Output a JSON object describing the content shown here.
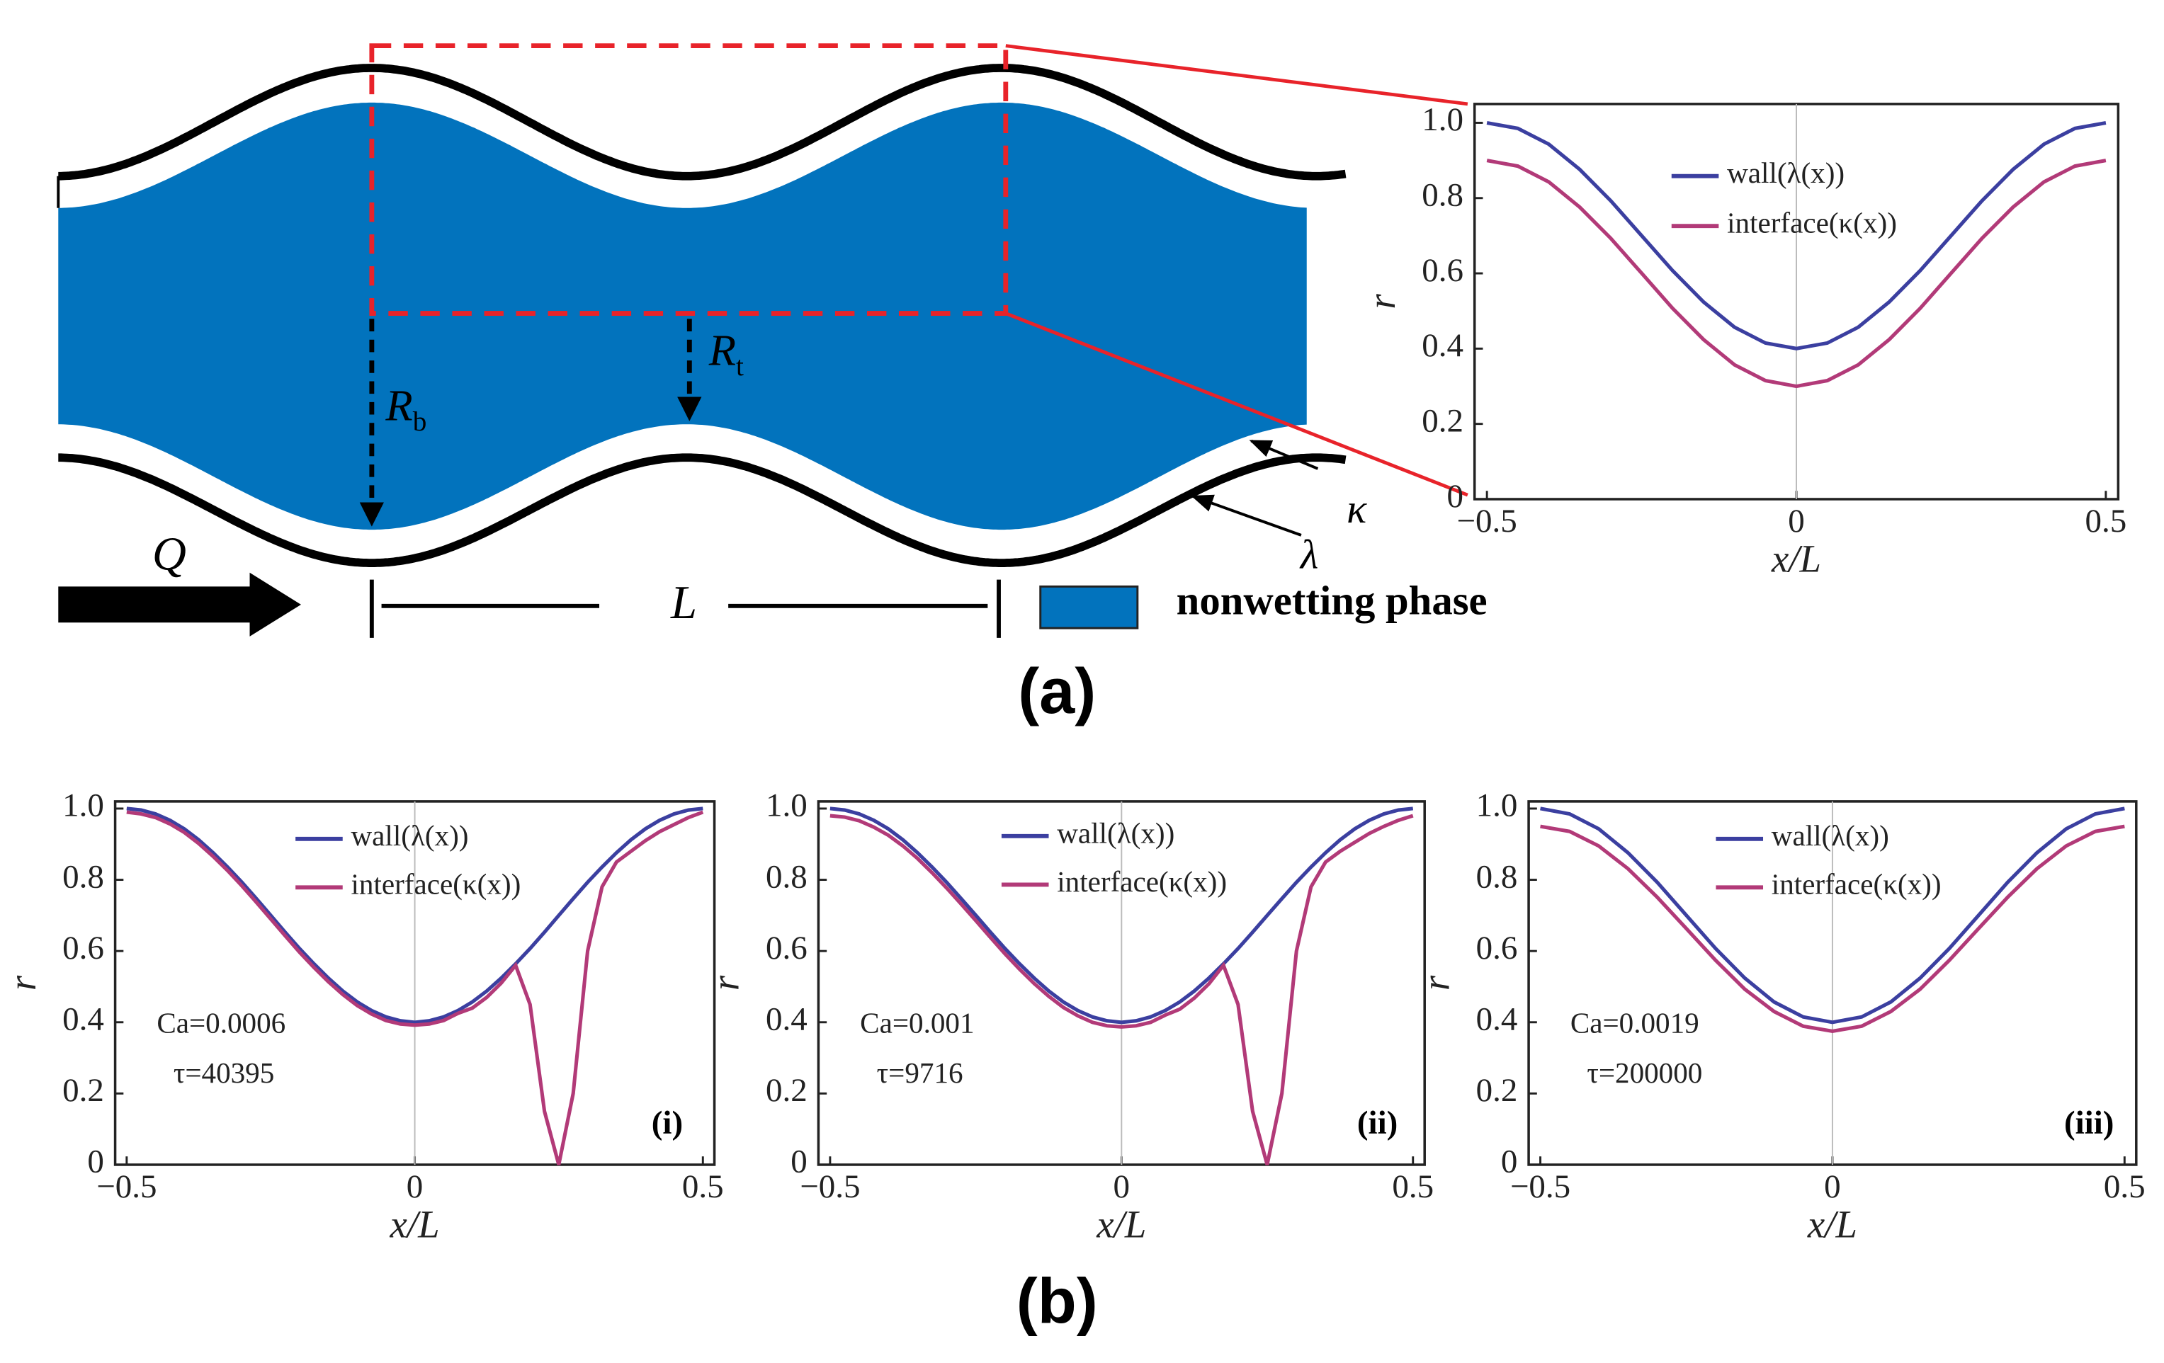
{
  "diagram": {
    "flow_label": "Q",
    "period_label": "L",
    "Rb": {
      "main": "R",
      "sub": "b"
    },
    "Rt": {
      "main": "R",
      "sub": "t"
    },
    "kappa_label": "κ",
    "lambda_label": "λ",
    "legend": "nonwetting phase",
    "panel_label": "(a)"
  },
  "panel_b_label": "(b)",
  "chart_data": [
    {
      "type": "line",
      "xlabel": "x/L",
      "ylabel": "r",
      "x": [
        -0.5,
        -0.45,
        -0.4,
        -0.35,
        -0.3,
        -0.25,
        -0.2,
        -0.15,
        -0.1,
        -0.05,
        0,
        0.05,
        0.1,
        0.15,
        0.2,
        0.25,
        0.3,
        0.35,
        0.4,
        0.45,
        0.5
      ],
      "series": [
        {
          "name": "wall(λ(x))",
          "color": "#3b3fa0",
          "values": [
            1.0,
            0.985,
            0.943,
            0.876,
            0.793,
            0.7,
            0.607,
            0.524,
            0.457,
            0.415,
            0.4,
            0.415,
            0.457,
            0.524,
            0.607,
            0.7,
            0.793,
            0.876,
            0.943,
            0.985,
            1.0
          ]
        },
        {
          "name": "interface(κ(x))",
          "color": "#b23a78",
          "values": [
            0.9,
            0.885,
            0.843,
            0.776,
            0.693,
            0.6,
            0.507,
            0.424,
            0.357,
            0.315,
            0.3,
            0.315,
            0.357,
            0.424,
            0.507,
            0.6,
            0.693,
            0.776,
            0.843,
            0.885,
            0.9
          ]
        }
      ],
      "xlim": [
        -0.52,
        0.52
      ],
      "ylim": [
        0,
        1.05
      ],
      "xticks": [
        {
          "value": -0.5,
          "label": "−0.5"
        },
        0,
        0.5
      ],
      "yticks": [
        0,
        0.2,
        0.4,
        0.6,
        0.8,
        {
          "value": 1.0,
          "label": "1.0"
        }
      ]
    },
    {
      "type": "line",
      "xlabel": "x/L",
      "ylabel": "r",
      "annotations": [
        "Ca=0.0006",
        "τ=40395"
      ],
      "panel_label": "(i)",
      "x": [
        -0.5,
        -0.475,
        -0.45,
        -0.425,
        -0.4,
        -0.375,
        -0.35,
        -0.325,
        -0.3,
        -0.275,
        -0.25,
        -0.225,
        -0.2,
        -0.175,
        -0.15,
        -0.125,
        -0.1,
        -0.075,
        -0.05,
        -0.025,
        0,
        0.025,
        0.05,
        0.075,
        0.1,
        0.125,
        0.15,
        0.175,
        0.2,
        0.225,
        0.25,
        0.275,
        0.3,
        0.325,
        0.35,
        0.375,
        0.4,
        0.425,
        0.45,
        0.475,
        0.5
      ],
      "series": [
        {
          "name": "wall(λ(x))",
          "color": "#3b3fa0",
          "values": [
            1.0,
            0.996,
            0.985,
            0.967,
            0.943,
            0.912,
            0.876,
            0.836,
            0.793,
            0.747,
            0.7,
            0.653,
            0.607,
            0.564,
            0.524,
            0.488,
            0.457,
            0.433,
            0.415,
            0.404,
            0.4,
            0.404,
            0.415,
            0.433,
            0.457,
            0.488,
            0.524,
            0.564,
            0.607,
            0.653,
            0.7,
            0.747,
            0.793,
            0.836,
            0.876,
            0.912,
            0.943,
            0.967,
            0.985,
            0.996,
            1.0
          ]
        },
        {
          "name": "interface(κ(x))",
          "color": "#b23a78",
          "values": [
            0.99,
            0.985,
            0.975,
            0.957,
            0.933,
            0.902,
            0.866,
            0.826,
            0.783,
            0.737,
            0.69,
            0.643,
            0.597,
            0.554,
            0.514,
            0.478,
            0.447,
            0.423,
            0.405,
            0.395,
            0.392,
            0.395,
            0.405,
            0.425,
            0.44,
            0.47,
            0.51,
            0.56,
            0.45,
            0.15,
            0.0,
            0.2,
            0.6,
            0.78,
            0.85,
            0.88,
            0.91,
            0.935,
            0.955,
            0.975,
            0.99
          ]
        }
      ],
      "xlim": [
        -0.52,
        0.52
      ],
      "ylim": [
        0,
        1.02
      ],
      "xticks": [
        {
          "value": -0.5,
          "label": "−0.5"
        },
        0,
        0.5
      ],
      "yticks": [
        0,
        0.2,
        0.4,
        0.6,
        0.8,
        {
          "value": 1.0,
          "label": "1.0"
        }
      ]
    },
    {
      "type": "line",
      "xlabel": "x/L",
      "ylabel": "r",
      "annotations": [
        "Ca=0.001",
        "τ=9716"
      ],
      "panel_label": "(ii)",
      "x": [
        -0.5,
        -0.475,
        -0.45,
        -0.425,
        -0.4,
        -0.375,
        -0.35,
        -0.325,
        -0.3,
        -0.275,
        -0.25,
        -0.225,
        -0.2,
        -0.175,
        -0.15,
        -0.125,
        -0.1,
        -0.075,
        -0.05,
        -0.025,
        0,
        0.025,
        0.05,
        0.075,
        0.1,
        0.125,
        0.15,
        0.175,
        0.2,
        0.225,
        0.25,
        0.275,
        0.3,
        0.325,
        0.35,
        0.375,
        0.4,
        0.425,
        0.45,
        0.475,
        0.5
      ],
      "series": [
        {
          "name": "wall(λ(x))",
          "color": "#3b3fa0",
          "values": [
            1.0,
            0.996,
            0.985,
            0.967,
            0.943,
            0.912,
            0.876,
            0.836,
            0.793,
            0.747,
            0.7,
            0.653,
            0.607,
            0.564,
            0.524,
            0.488,
            0.457,
            0.433,
            0.415,
            0.404,
            0.4,
            0.404,
            0.415,
            0.433,
            0.457,
            0.488,
            0.524,
            0.564,
            0.607,
            0.653,
            0.7,
            0.747,
            0.793,
            0.836,
            0.876,
            0.912,
            0.943,
            0.967,
            0.985,
            0.996,
            1.0
          ]
        },
        {
          "name": "interface(κ(x))",
          "color": "#b23a78",
          "values": [
            0.98,
            0.976,
            0.966,
            0.948,
            0.925,
            0.895,
            0.86,
            0.82,
            0.777,
            0.732,
            0.685,
            0.638,
            0.592,
            0.549,
            0.509,
            0.473,
            0.442,
            0.418,
            0.4,
            0.39,
            0.387,
            0.39,
            0.4,
            0.42,
            0.437,
            0.468,
            0.508,
            0.56,
            0.45,
            0.15,
            0.0,
            0.2,
            0.6,
            0.78,
            0.85,
            0.88,
            0.905,
            0.93,
            0.95,
            0.967,
            0.98
          ]
        }
      ],
      "xlim": [
        -0.52,
        0.52
      ],
      "ylim": [
        0,
        1.02
      ],
      "xticks": [
        {
          "value": -0.5,
          "label": "−0.5"
        },
        0,
        0.5
      ],
      "yticks": [
        0,
        0.2,
        0.4,
        0.6,
        0.8,
        {
          "value": 1.0,
          "label": "1.0"
        }
      ]
    },
    {
      "type": "line",
      "xlabel": "x/L",
      "ylabel": "r",
      "annotations": [
        "Ca=0.0019",
        "τ=200000"
      ],
      "panel_label": "(iii)",
      "x": [
        -0.5,
        -0.45,
        -0.4,
        -0.35,
        -0.3,
        -0.25,
        -0.2,
        -0.15,
        -0.1,
        -0.05,
        0,
        0.05,
        0.1,
        0.15,
        0.2,
        0.25,
        0.3,
        0.35,
        0.4,
        0.45,
        0.5
      ],
      "series": [
        {
          "name": "wall(λ(x))",
          "color": "#3b3fa0",
          "values": [
            1.0,
            0.985,
            0.943,
            0.876,
            0.793,
            0.7,
            0.607,
            0.524,
            0.457,
            0.415,
            0.4,
            0.415,
            0.457,
            0.524,
            0.607,
            0.7,
            0.793,
            0.876,
            0.943,
            0.985,
            1.0
          ]
        },
        {
          "name": "interface(κ(x))",
          "color": "#b23a78",
          "values": [
            0.95,
            0.936,
            0.895,
            0.831,
            0.751,
            0.663,
            0.574,
            0.493,
            0.43,
            0.389,
            0.375,
            0.389,
            0.43,
            0.493,
            0.574,
            0.663,
            0.751,
            0.831,
            0.895,
            0.936,
            0.95
          ]
        }
      ],
      "xlim": [
        -0.52,
        0.52
      ],
      "ylim": [
        0,
        1.02
      ],
      "xticks": [
        {
          "value": -0.5,
          "label": "−0.5"
        },
        0,
        0.5
      ],
      "yticks": [
        0,
        0.2,
        0.4,
        0.6,
        0.8,
        {
          "value": 1.0,
          "label": "1.0"
        }
      ]
    }
  ]
}
